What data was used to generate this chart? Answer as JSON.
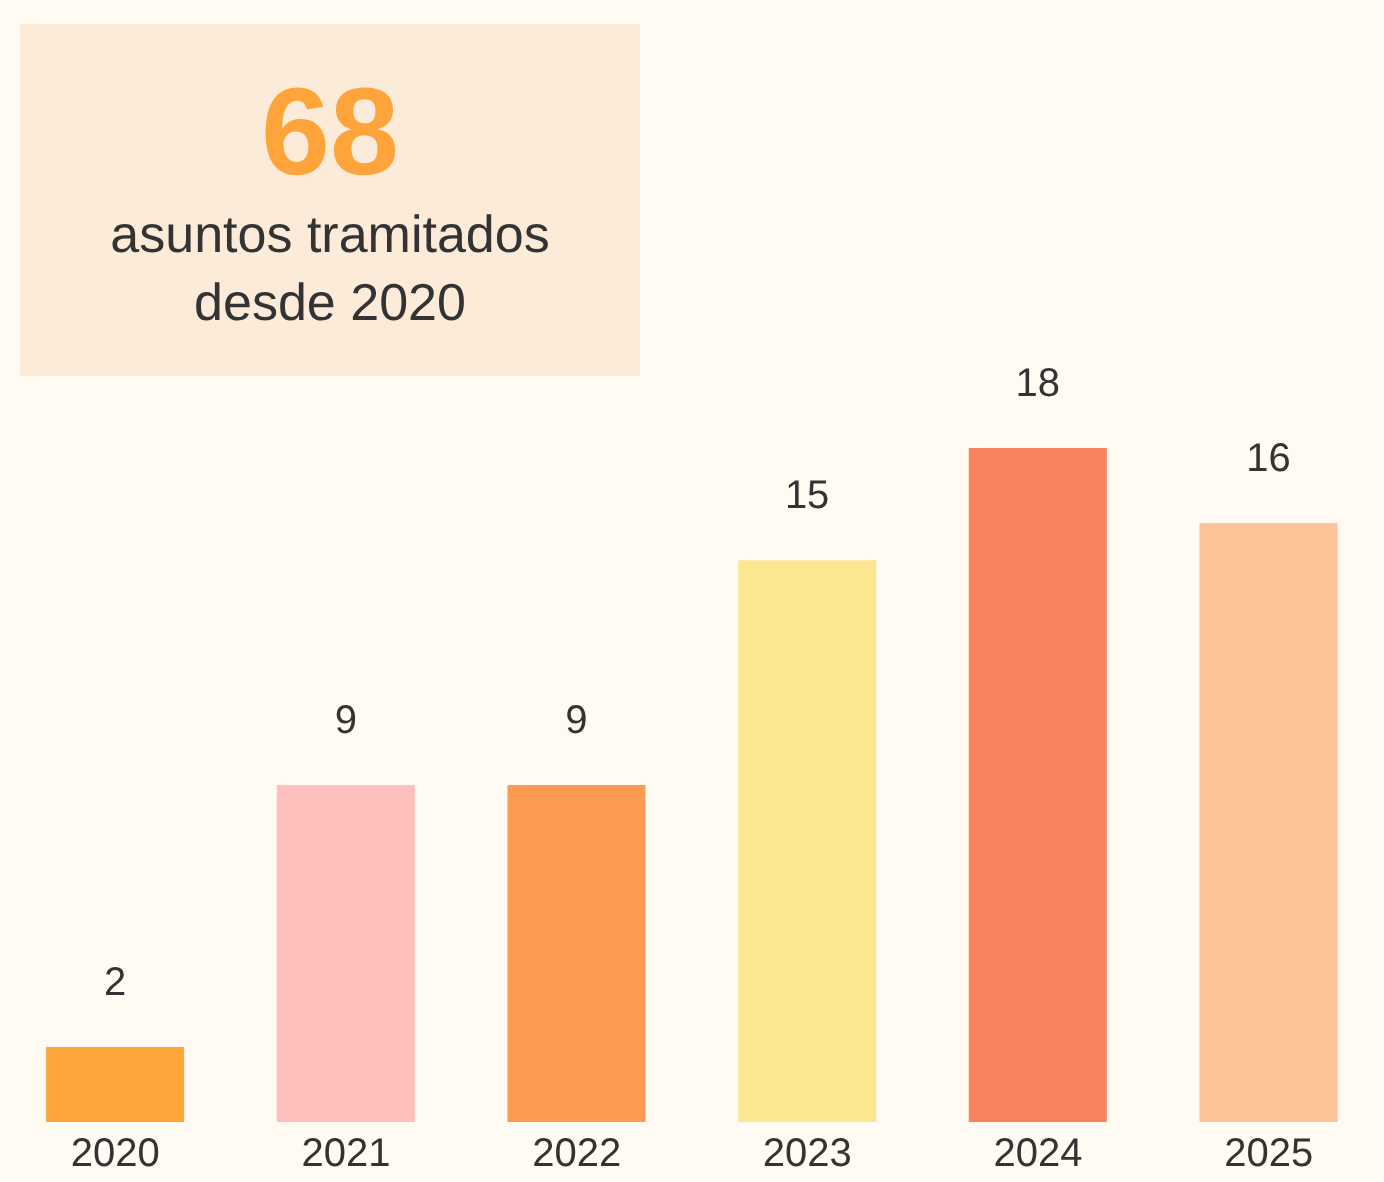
{
  "chart_data": {
    "type": "bar",
    "title": "68",
    "subtitle": "asuntos tramitados desde 2020",
    "categories": [
      "2020",
      "2021",
      "2022",
      "2023",
      "2024",
      "2025"
    ],
    "values": [
      2,
      9,
      9,
      15,
      18,
      16
    ],
    "colors": [
      "#ffa43a",
      "#ffc0bd",
      "#fb9a50",
      "#fce690",
      "#f8835c",
      "#fdc398"
    ],
    "data_labels": true
  }
}
